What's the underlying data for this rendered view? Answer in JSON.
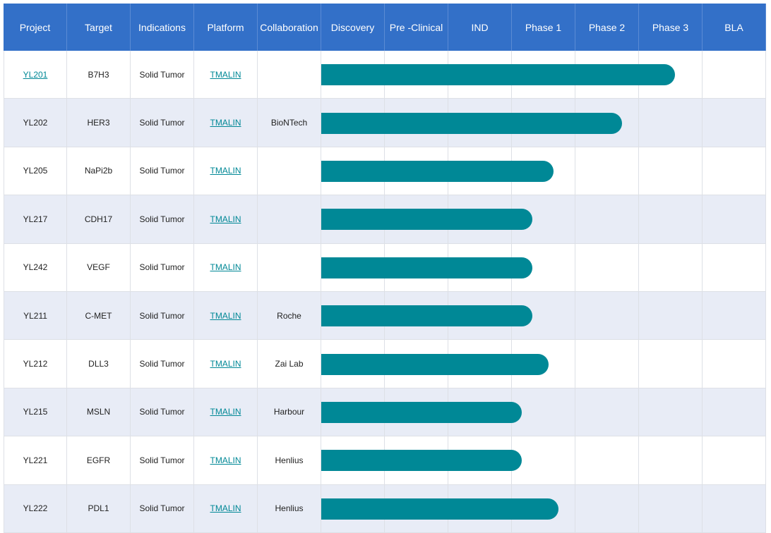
{
  "table": {
    "columns": [
      "Project",
      "Target",
      "Indications",
      "Platform",
      "Collaboration",
      "Discovery",
      "Pre -Clinical",
      "IND",
      "Phase 1",
      "Phase 2",
      "Phase 3",
      "BLA"
    ],
    "rows": [
      {
        "project": "YL201",
        "project_is_link": true,
        "target": "B7H3",
        "indication": "Solid Tumor",
        "platform": "TMALIN",
        "collaboration": null,
        "progress": 5.57
      },
      {
        "project": "YL202",
        "project_is_link": false,
        "target": "HER3",
        "indication": "Solid Tumor",
        "platform": "TMALIN",
        "collaboration": "BioNTech",
        "progress": 4.73
      },
      {
        "project": "YL205",
        "project_is_link": false,
        "target": "NaPi2b",
        "indication": "Solid Tumor",
        "platform": "TMALIN",
        "collaboration": null,
        "progress": 3.66
      },
      {
        "project": "YL217",
        "project_is_link": false,
        "target": "CDH17",
        "indication": "Solid Tumor",
        "platform": "TMALIN",
        "collaboration": null,
        "progress": 3.32
      },
      {
        "project": "YL242",
        "project_is_link": false,
        "target": "VEGF",
        "indication": "Solid Tumor",
        "platform": "TMALIN",
        "collaboration": null,
        "progress": 3.32
      },
      {
        "project": "YL211",
        "project_is_link": false,
        "target": "C-MET",
        "indication": "Solid Tumor",
        "platform": "TMALIN",
        "collaboration": "Roche",
        "progress": 3.32
      },
      {
        "project": "YL212",
        "project_is_link": false,
        "target": "DLL3",
        "indication": "Solid Tumor",
        "platform": "TMALIN",
        "collaboration": "Zai Lab",
        "progress": 3.58
      },
      {
        "project": "YL215",
        "project_is_link": false,
        "target": "MSLN",
        "indication": "Solid Tumor",
        "platform": "TMALIN",
        "collaboration": "Harbour",
        "progress": 3.16
      },
      {
        "project": "YL221",
        "project_is_link": false,
        "target": "EGFR",
        "indication": "Solid Tumor",
        "platform": "TMALIN",
        "collaboration": "Henlius",
        "progress": 3.16
      },
      {
        "project": "YL222",
        "project_is_link": false,
        "target": "PDL1",
        "indication": "Solid Tumor",
        "platform": "TMALIN",
        "collaboration": "Henlius",
        "progress": 3.73
      }
    ]
  }
}
